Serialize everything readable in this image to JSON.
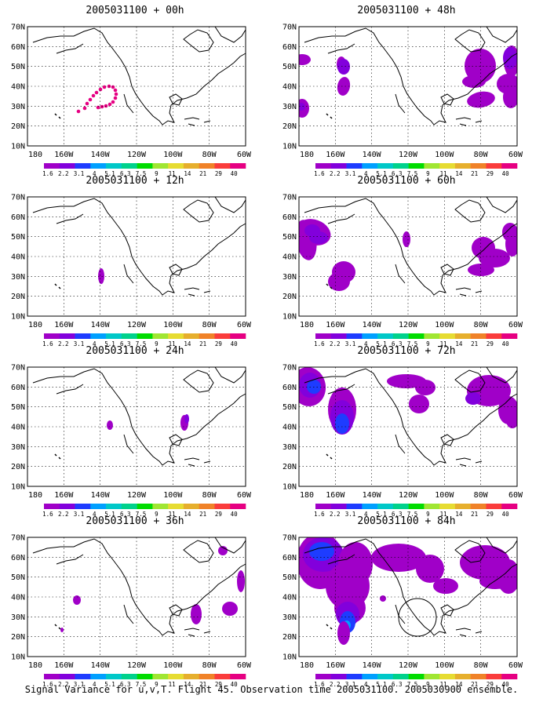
{
  "panels": [
    {
      "title": "2005031100 + 00h"
    },
    {
      "title": "2005031100 + 48h"
    },
    {
      "title": "2005031100 + 12h"
    },
    {
      "title": "2005031100 + 60h"
    },
    {
      "title": "2005031100 + 24h"
    },
    {
      "title": "2005031100 + 72h"
    },
    {
      "title": "2005031100 + 36h"
    },
    {
      "title": "2005031100 + 84h"
    }
  ],
  "axes": {
    "lat_labels": [
      "70N",
      "60N",
      "50N",
      "40N",
      "30N",
      "20N",
      "10N"
    ],
    "lon_labels": [
      "180",
      "160W",
      "140W",
      "120W",
      "100W",
      "80W",
      "60W"
    ]
  },
  "colorbar": {
    "labels": [
      "1.6",
      "2.2",
      "3.1",
      "4",
      "5.1",
      "6.3",
      "7.5",
      "9",
      "11",
      "14",
      "21",
      "29",
      "40"
    ],
    "colors": [
      "#a000c8",
      "#8200dc",
      "#1e3cff",
      "#00a0ff",
      "#00c8c8",
      "#00d28c",
      "#00dc00",
      "#a0e632",
      "#e6dc32",
      "#e6af2d",
      "#f08228",
      "#fa3c3c",
      "#e60082"
    ]
  },
  "footer": "Signal Variance for u,v,T. Flight 45. Observation time 2005031100. 2005030900 ensemble."
}
